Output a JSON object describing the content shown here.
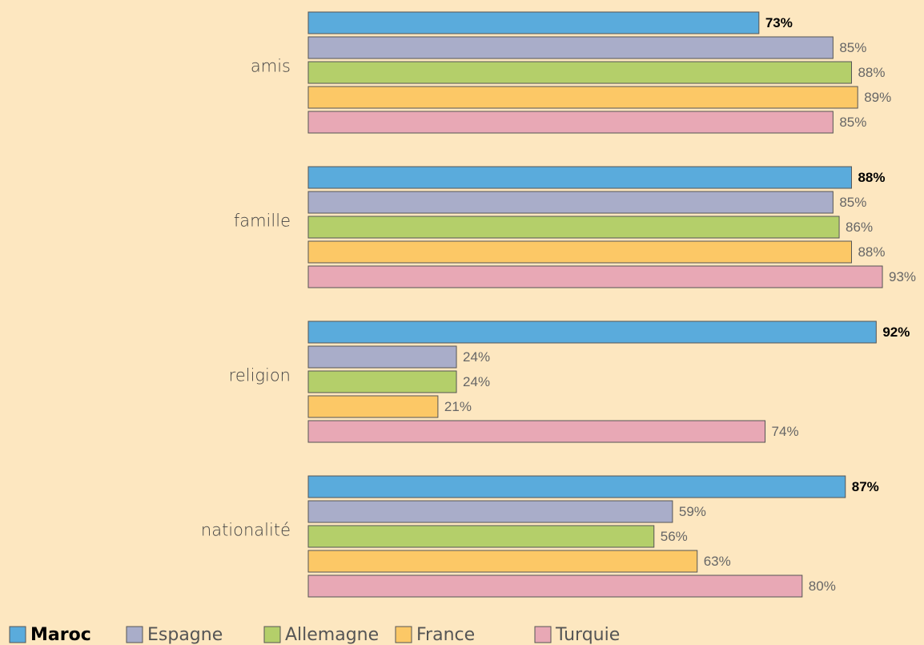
{
  "chart_data": {
    "type": "bar",
    "orientation": "horizontal",
    "categories": [
      "amis",
      "famille",
      "religion",
      "nationalité"
    ],
    "series": [
      {
        "name": "Maroc",
        "color": "#5aabdc",
        "values": [
          73,
          88,
          92,
          87
        ],
        "value_labels": [
          "73%",
          "88%",
          "92%",
          "87%"
        ]
      },
      {
        "name": "Espagne",
        "color": "#a9adc9",
        "values": [
          85,
          85,
          24,
          59
        ],
        "value_labels": [
          "85%",
          "85%",
          "24%",
          "59%"
        ]
      },
      {
        "name": "Allemagne",
        "color": "#b4cf6a",
        "values": [
          88,
          86,
          24,
          56
        ],
        "value_labels": [
          "88%",
          "86%",
          "24%",
          "56%"
        ]
      },
      {
        "name": "France",
        "color": "#fcc866",
        "values": [
          89,
          88,
          21,
          63
        ],
        "value_labels": [
          "89%",
          "88%",
          "21%",
          "63%"
        ]
      },
      {
        "name": "Turquie",
        "color": "#e8a8b5",
        "values": [
          85,
          93,
          74,
          80
        ],
        "value_labels": [
          "85%",
          "93%",
          "74%",
          "80%"
        ]
      }
    ]
  }
}
